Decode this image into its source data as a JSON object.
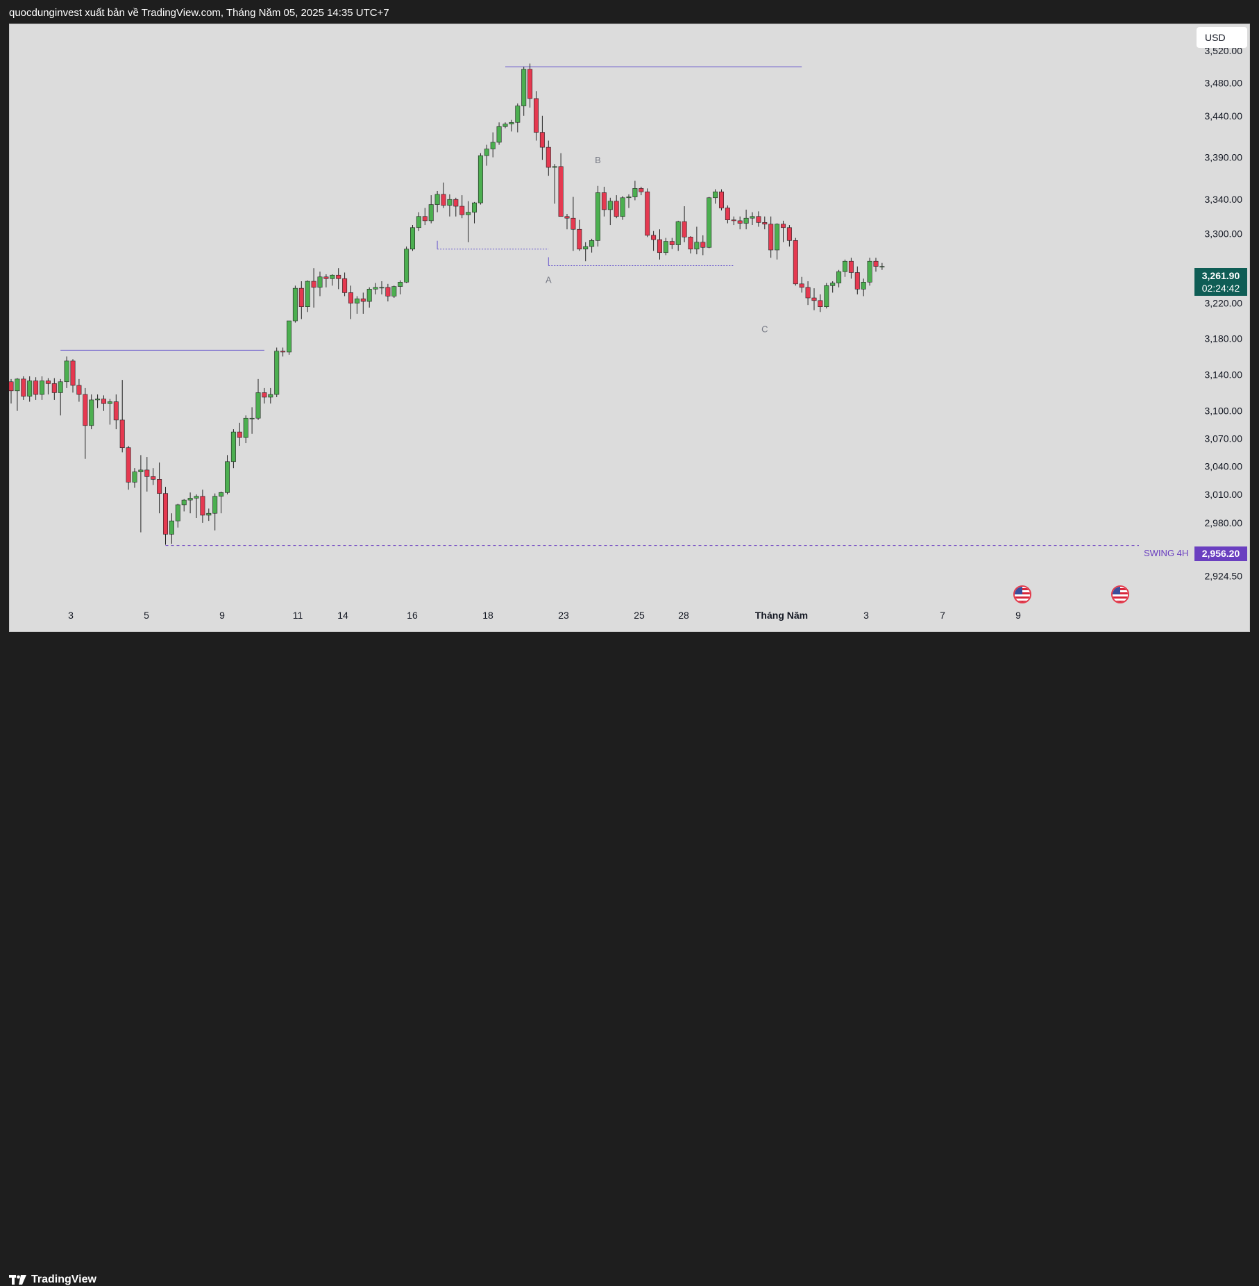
{
  "header": {
    "title": "quocdunginvest xuất bản về TradingView.com, Tháng Năm 05, 2025 14:35 UTC+7"
  },
  "footer": {
    "brand": "TradingView"
  },
  "currency": "USD",
  "last_price": {
    "value": "3,261.90",
    "countdown": "02:24:42",
    "color": "#0f5d55"
  },
  "swing": {
    "label": "SWING 4H",
    "value": "2,956.20",
    "color": "#6a3fc0"
  },
  "colors": {
    "up": "#4caf50",
    "down": "#e53950",
    "line": "#6a5acd",
    "background": "#dcdcdc"
  },
  "icons": {
    "event_flag": "us-flag-icon",
    "logo": "tradingview-logo-icon"
  },
  "chart_data": {
    "type": "candlestick",
    "y_axis": {
      "ticks": [
        "3,520.00",
        "3,480.00",
        "3,440.00",
        "3,390.00",
        "3,340.00",
        "3,300.00",
        "3,220.00",
        "3,180.00",
        "3,140.00",
        "3,100.00",
        "3,070.00",
        "3,040.00",
        "3,010.00",
        "2,980.00",
        "2,924.50"
      ],
      "range": [
        2900,
        3545
      ],
      "scale": "log"
    },
    "x_axis": {
      "ticks": [
        "3",
        "5",
        "9",
        "11",
        "14",
        "16",
        "18",
        "23",
        "25",
        "28",
        "Tháng Năm",
        "3",
        "7",
        "9"
      ]
    },
    "annotations": [
      {
        "text": "A",
        "bar": 87,
        "price": 3243
      },
      {
        "text": "B",
        "bar": 95,
        "price": 3383
      },
      {
        "text": "C",
        "bar": 122,
        "price": 3187
      }
    ],
    "levels": [
      {
        "name": "swing-high-line",
        "price": 3500,
        "from_bar": 80,
        "to_bar": 128
      },
      {
        "name": "early-high-line",
        "price": 3167,
        "from_bar": 8,
        "to_bar": 41
      },
      {
        "name": "low-a-line",
        "price": 3282,
        "from_bar": 69,
        "to_bar": 87
      },
      {
        "name": "low-b-line",
        "price": 3263,
        "from_bar": 87,
        "to_bar": 117
      }
    ],
    "candles": [
      [
        3132,
        3135,
        3108,
        3122
      ],
      [
        3122,
        3136,
        3100,
        3135
      ],
      [
        3135,
        3138,
        3112,
        3116
      ],
      [
        3116,
        3138,
        3110,
        3133
      ],
      [
        3133,
        3137,
        3112,
        3118
      ],
      [
        3118,
        3138,
        3112,
        3133
      ],
      [
        3133,
        3136,
        3118,
        3130
      ],
      [
        3130,
        3136,
        3112,
        3120
      ],
      [
        3120,
        3135,
        3095,
        3132
      ],
      [
        3132,
        3160,
        3125,
        3155
      ],
      [
        3155,
        3157,
        3120,
        3128
      ],
      [
        3128,
        3135,
        3110,
        3118
      ],
      [
        3118,
        3125,
        3048,
        3084
      ],
      [
        3084,
        3118,
        3080,
        3112
      ],
      [
        3112,
        3118,
        3103,
        3113
      ],
      [
        3113,
        3117,
        3100,
        3108
      ],
      [
        3108,
        3113,
        3085,
        3110
      ],
      [
        3110,
        3118,
        3080,
        3090
      ],
      [
        3090,
        3134,
        3055,
        3060
      ],
      [
        3060,
        3062,
        3015,
        3023
      ],
      [
        3023,
        3038,
        3017,
        3034
      ],
      [
        3034,
        3052,
        2970,
        3036
      ],
      [
        3036,
        3050,
        3013,
        3029
      ],
      [
        3029,
        3038,
        3020,
        3026
      ],
      [
        3026,
        3044,
        2990,
        3011
      ],
      [
        3011,
        3018,
        2957,
        2968
      ],
      [
        2968,
        2990,
        2958,
        2982
      ],
      [
        2982,
        3000,
        2975,
        2999
      ],
      [
        2999,
        3005,
        2992,
        3004
      ],
      [
        3004,
        3012,
        2990,
        3006
      ],
      [
        3006,
        3010,
        2985,
        3008
      ],
      [
        3008,
        3015,
        2980,
        2988
      ],
      [
        2988,
        2995,
        2982,
        2990
      ],
      [
        2990,
        3011,
        2972,
        3008
      ],
      [
        3008,
        3013,
        2990,
        3012
      ],
      [
        3012,
        3052,
        3010,
        3045
      ],
      [
        3045,
        3080,
        3038,
        3077
      ],
      [
        3077,
        3087,
        3062,
        3071
      ],
      [
        3071,
        3095,
        3065,
        3092
      ],
      [
        3092,
        3104,
        3075,
        3092
      ],
      [
        3092,
        3135,
        3090,
        3120
      ],
      [
        3120,
        3125,
        3108,
        3115
      ],
      [
        3115,
        3125,
        3108,
        3118
      ],
      [
        3118,
        3170,
        3115,
        3166
      ],
      [
        3166,
        3170,
        3160,
        3165
      ],
      [
        3165,
        3200,
        3162,
        3200
      ],
      [
        3200,
        3240,
        3198,
        3237
      ],
      [
        3237,
        3245,
        3202,
        3216
      ],
      [
        3216,
        3246,
        3210,
        3245
      ],
      [
        3245,
        3260,
        3215,
        3238
      ],
      [
        3238,
        3256,
        3228,
        3250
      ],
      [
        3250,
        3253,
        3238,
        3248
      ],
      [
        3248,
        3253,
        3240,
        3252
      ],
      [
        3252,
        3260,
        3236,
        3248
      ],
      [
        3248,
        3255,
        3228,
        3232
      ],
      [
        3232,
        3240,
        3202,
        3220
      ],
      [
        3220,
        3228,
        3208,
        3225
      ],
      [
        3225,
        3232,
        3208,
        3222
      ],
      [
        3222,
        3238,
        3215,
        3236
      ],
      [
        3236,
        3243,
        3230,
        3238
      ],
      [
        3238,
        3245,
        3230,
        3238
      ],
      [
        3238,
        3242,
        3222,
        3228
      ],
      [
        3228,
        3240,
        3226,
        3239
      ],
      [
        3239,
        3246,
        3230,
        3244
      ],
      [
        3244,
        3285,
        3243,
        3282
      ],
      [
        3282,
        3310,
        3280,
        3307
      ],
      [
        3307,
        3325,
        3303,
        3320
      ],
      [
        3320,
        3330,
        3310,
        3315
      ],
      [
        3315,
        3345,
        3312,
        3334
      ],
      [
        3334,
        3350,
        3325,
        3346
      ],
      [
        3346,
        3360,
        3330,
        3333
      ],
      [
        3333,
        3346,
        3320,
        3340
      ],
      [
        3340,
        3342,
        3320,
        3332
      ],
      [
        3332,
        3345,
        3318,
        3322
      ],
      [
        3322,
        3338,
        3290,
        3325
      ],
      [
        3325,
        3337,
        3312,
        3336
      ],
      [
        3336,
        3395,
        3334,
        3392
      ],
      [
        3392,
        3405,
        3380,
        3400
      ],
      [
        3400,
        3420,
        3390,
        3408
      ],
      [
        3408,
        3432,
        3405,
        3427
      ],
      [
        3427,
        3432,
        3425,
        3430
      ],
      [
        3430,
        3435,
        3421,
        3432
      ],
      [
        3432,
        3455,
        3420,
        3452
      ],
      [
        3452,
        3500,
        3440,
        3497
      ],
      [
        3497,
        3504,
        3450,
        3461
      ],
      [
        3461,
        3470,
        3410,
        3420
      ],
      [
        3420,
        3440,
        3387,
        3402
      ],
      [
        3402,
        3410,
        3368,
        3378
      ],
      [
        3378,
        3382,
        3335,
        3379
      ],
      [
        3379,
        3395,
        3320,
        3320
      ],
      [
        3320,
        3323,
        3305,
        3318
      ],
      [
        3318,
        3343,
        3280,
        3305
      ],
      [
        3305,
        3316,
        3280,
        3282
      ],
      [
        3282,
        3290,
        3268,
        3285
      ],
      [
        3285,
        3294,
        3278,
        3292
      ],
      [
        3292,
        3356,
        3285,
        3348
      ],
      [
        3348,
        3355,
        3320,
        3328
      ],
      [
        3328,
        3342,
        3310,
        3338
      ],
      [
        3338,
        3345,
        3318,
        3320
      ],
      [
        3320,
        3344,
        3316,
        3342
      ],
      [
        3342,
        3346,
        3330,
        3343
      ],
      [
        3343,
        3362,
        3339,
        3353
      ],
      [
        3353,
        3355,
        3345,
        3349
      ],
      [
        3349,
        3353,
        3296,
        3298
      ],
      [
        3298,
        3303,
        3280,
        3293
      ],
      [
        3293,
        3305,
        3270,
        3278
      ],
      [
        3278,
        3295,
        3275,
        3291
      ],
      [
        3291,
        3295,
        3282,
        3287
      ],
      [
        3287,
        3315,
        3280,
        3314
      ],
      [
        3314,
        3332,
        3290,
        3296
      ],
      [
        3296,
        3297,
        3277,
        3282
      ],
      [
        3282,
        3308,
        3276,
        3290
      ],
      [
        3290,
        3298,
        3275,
        3284
      ],
      [
        3284,
        3343,
        3283,
        3342
      ],
      [
        3342,
        3352,
        3335,
        3349
      ],
      [
        3349,
        3352,
        3327,
        3330
      ],
      [
        3330,
        3333,
        3312,
        3316
      ],
      [
        3316,
        3320,
        3310,
        3315
      ],
      [
        3315,
        3320,
        3305,
        3312
      ],
      [
        3312,
        3328,
        3305,
        3318
      ],
      [
        3318,
        3325,
        3310,
        3320
      ],
      [
        3320,
        3326,
        3308,
        3313
      ],
      [
        3313,
        3320,
        3305,
        3311
      ],
      [
        3311,
        3320,
        3272,
        3281
      ],
      [
        3281,
        3312,
        3270,
        3311
      ],
      [
        3311,
        3315,
        3290,
        3307
      ],
      [
        3307,
        3310,
        3285,
        3292
      ],
      [
        3292,
        3295,
        3240,
        3242
      ],
      [
        3242,
        3250,
        3232,
        3238
      ],
      [
        3238,
        3245,
        3218,
        3226
      ],
      [
        3226,
        3237,
        3212,
        3223
      ],
      [
        3223,
        3230,
        3210,
        3216
      ],
      [
        3216,
        3243,
        3214,
        3240
      ],
      [
        3240,
        3245,
        3232,
        3243
      ],
      [
        3243,
        3258,
        3238,
        3256
      ],
      [
        3256,
        3270,
        3250,
        3268
      ],
      [
        3268,
        3272,
        3248,
        3255
      ],
      [
        3255,
        3262,
        3230,
        3236
      ],
      [
        3236,
        3248,
        3228,
        3244
      ],
      [
        3244,
        3272,
        3240,
        3268
      ],
      [
        3268,
        3272,
        3256,
        3262
      ],
      [
        3262,
        3266,
        3258,
        3262
      ]
    ]
  }
}
